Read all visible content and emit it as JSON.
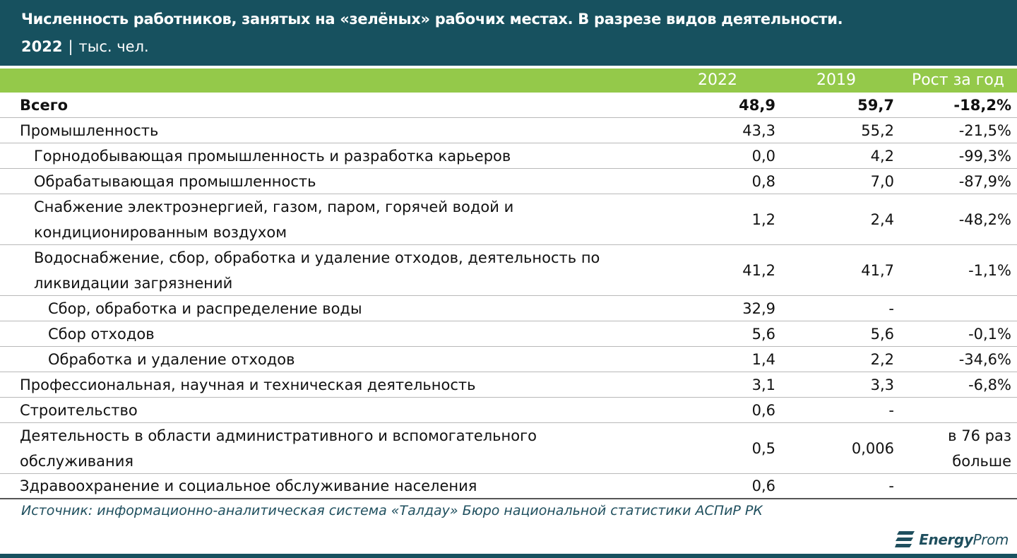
{
  "header": {
    "title": "Численность работников, занятых на «зелёных» рабочих местах. В разрезе видов деятельности.",
    "year": "2022",
    "separator": "|",
    "unit": "тыс. чел."
  },
  "columns": {
    "year_current": "2022",
    "year_previous": "2019",
    "growth": "Рост за год"
  },
  "chart_data": {
    "type": "table",
    "columns": [
      "2022",
      "2019",
      "Рост за год"
    ],
    "rows": [
      {
        "label": "Всего",
        "v2022": "48,9",
        "v2019": "59,7",
        "growth": "-18,2%",
        "level": 0,
        "bold": true
      },
      {
        "label": "Промышленность",
        "v2022": "43,3",
        "v2019": "55,2",
        "growth": "-21,5%",
        "level": 0
      },
      {
        "label": "Горнодобывающая промышленность и разработка карьеров",
        "v2022": "0,0",
        "v2019": "4,2",
        "growth": "-99,3%",
        "level": 1
      },
      {
        "label": "Обрабатывающая промышленность",
        "v2022": "0,8",
        "v2019": "7,0",
        "growth": "-87,9%",
        "level": 1
      },
      {
        "label": "Снабжение электроэнергией, газом, паром, горячей водой и кондиционированным воздухом",
        "v2022": "1,2",
        "v2019": "2,4",
        "growth": "-48,2%",
        "level": 1
      },
      {
        "label": "Водоснабжение, сбор, обработка и удаление отходов, деятельность по ликвидации загрязнений",
        "v2022": "41,2",
        "v2019": "41,7",
        "growth": "-1,1%",
        "level": 1
      },
      {
        "label": "Сбор, обработка и распределение воды",
        "v2022": "32,9",
        "v2019": "-",
        "growth": "",
        "level": 2
      },
      {
        "label": "Сбор отходов",
        "v2022": "5,6",
        "v2019": "5,6",
        "growth": "-0,1%",
        "level": 2
      },
      {
        "label": "Обработка и удаление отходов",
        "v2022": "1,4",
        "v2019": "2,2",
        "growth": "-34,6%",
        "level": 2
      },
      {
        "label": "Профессиональная, научная и техническая деятельность",
        "v2022": "3,1",
        "v2019": "3,3",
        "growth": "-6,8%",
        "level": 0
      },
      {
        "label": "Строительство",
        "v2022": "0,6",
        "v2019": "-",
        "growth": "",
        "level": 0
      },
      {
        "label": "Деятельность в области административного и вспомогательного обслуживания",
        "v2022": "0,5",
        "v2019": "0,006",
        "growth": "в 76 раз больше",
        "level": 0
      },
      {
        "label": "Здравоохранение и социальное обслуживание населения",
        "v2022": "0,6",
        "v2019": "-",
        "growth": "",
        "level": 0
      }
    ]
  },
  "source": "Источник: информационно-аналитическая система «Талдау» Бюро национальной статистики АСПиР РК",
  "logo": {
    "part1": "Energy",
    "part2": "Prom"
  }
}
